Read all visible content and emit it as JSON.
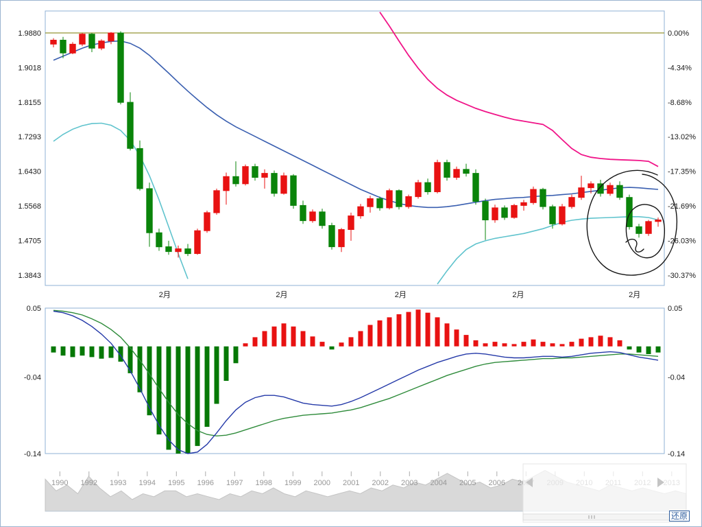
{
  "controls": {
    "restore_label": "还原"
  },
  "colors": {
    "up": "#e81212",
    "down": "#0a840a",
    "ma_line": "#3a5fb0",
    "band_upper": "#f01488",
    "band_lower": "#5fc3cd",
    "reference_line": "#7b7b00",
    "dif": "#2439a8",
    "dea": "#2e8b3a",
    "hist_up": "#e81212",
    "hist_down": "#067806",
    "border": "#8fb2d4",
    "annotation": "#151515",
    "nav_area": "#d9d9d9",
    "nav_area_edge": "#c4c4c4"
  },
  "chart_data": {
    "type": "candlestick",
    "title": "",
    "price_panel": {
      "ylim": [
        1.3586,
        2.0427
      ],
      "reference": 1.988,
      "y_ticks": [
        {
          "v": 1.988,
          "left": "1.9880",
          "right": "0.00%"
        },
        {
          "v": 1.9018,
          "left": "1.9018",
          "right": "-4.34%"
        },
        {
          "v": 1.8155,
          "left": "1.8155",
          "right": "-8.68%"
        },
        {
          "v": 1.7293,
          "left": "1.7293",
          "right": "-13.02%"
        },
        {
          "v": 1.643,
          "left": "1.6430",
          "right": "-17.35%"
        },
        {
          "v": 1.5568,
          "left": "1.5568",
          "right": "-21.69%"
        },
        {
          "v": 1.4705,
          "left": "1.4705",
          "right": "-26.03%"
        },
        {
          "v": 1.3843,
          "left": "1.3843",
          "right": "-30.37%"
        }
      ],
      "x_ticks": [
        {
          "f": 0.193,
          "label": "2月"
        },
        {
          "f": 0.382,
          "label": "2月"
        },
        {
          "f": 0.574,
          "label": "2月"
        },
        {
          "f": 0.764,
          "label": "2月"
        },
        {
          "f": 0.952,
          "label": "2月"
        }
      ],
      "candles": [
        [
          1.96,
          1.975,
          1.952,
          1.97
        ],
        [
          1.97,
          1.978,
          1.925,
          1.938
        ],
        [
          1.938,
          1.965,
          1.935,
          1.96
        ],
        [
          1.96,
          1.988,
          1.955,
          1.985
        ],
        [
          1.985,
          1.988,
          1.94,
          1.95
        ],
        [
          1.95,
          1.972,
          1.945,
          1.968
        ],
        [
          1.968,
          1.99,
          1.96,
          1.988
        ],
        [
          1.988,
          1.992,
          1.81,
          1.815
        ],
        [
          1.815,
          1.84,
          1.695,
          1.7
        ],
        [
          1.7,
          1.72,
          1.595,
          1.6
        ],
        [
          1.6,
          1.615,
          1.455,
          1.49
        ],
        [
          1.49,
          1.5,
          1.445,
          1.455
        ],
        [
          1.455,
          1.47,
          1.435,
          1.443
        ],
        [
          1.443,
          1.458,
          1.428,
          1.45
        ],
        [
          1.45,
          1.462,
          1.432,
          1.438
        ],
        [
          1.438,
          1.5,
          1.435,
          1.495
        ],
        [
          1.495,
          1.545,
          1.49,
          1.54
        ],
        [
          1.54,
          1.6,
          1.535,
          1.595
        ],
        [
          1.595,
          1.64,
          1.56,
          1.63
        ],
        [
          1.63,
          1.668,
          1.605,
          1.612
        ],
        [
          1.612,
          1.66,
          1.608,
          1.655
        ],
        [
          1.655,
          1.662,
          1.62,
          1.628
        ],
        [
          1.628,
          1.648,
          1.6,
          1.638
        ],
        [
          1.638,
          1.645,
          1.58,
          1.588
        ],
        [
          1.588,
          1.64,
          1.585,
          1.632
        ],
        [
          1.632,
          1.636,
          1.55,
          1.558
        ],
        [
          1.558,
          1.57,
          1.512,
          1.52
        ],
        [
          1.52,
          1.548,
          1.515,
          1.542
        ],
        [
          1.542,
          1.55,
          1.5,
          1.508
        ],
        [
          1.508,
          1.515,
          1.448,
          1.455
        ],
        [
          1.455,
          1.502,
          1.442,
          1.498
        ],
        [
          1.498,
          1.54,
          1.47,
          1.532
        ],
        [
          1.532,
          1.562,
          1.525,
          1.555
        ],
        [
          1.555,
          1.582,
          1.54,
          1.575
        ],
        [
          1.575,
          1.58,
          1.545,
          1.552
        ],
        [
          1.552,
          1.6,
          1.548,
          1.595
        ],
        [
          1.595,
          1.598,
          1.548,
          1.555
        ],
        [
          1.555,
          1.585,
          1.55,
          1.58
        ],
        [
          1.58,
          1.622,
          1.575,
          1.615
        ],
        [
          1.615,
          1.625,
          1.585,
          1.592
        ],
        [
          1.592,
          1.672,
          1.588,
          1.665
        ],
        [
          1.665,
          1.672,
          1.62,
          1.628
        ],
        [
          1.628,
          1.655,
          1.622,
          1.648
        ],
        [
          1.648,
          1.662,
          1.63,
          1.638
        ],
        [
          1.638,
          1.648,
          1.56,
          1.568
        ],
        [
          1.568,
          1.575,
          1.472,
          1.522
        ],
        [
          1.522,
          1.56,
          1.515,
          1.552
        ],
        [
          1.552,
          1.558,
          1.522,
          1.528
        ],
        [
          1.528,
          1.562,
          1.525,
          1.558
        ],
        [
          1.558,
          1.572,
          1.545,
          1.565
        ],
        [
          1.565,
          1.605,
          1.56,
          1.598
        ],
        [
          1.598,
          1.602,
          1.548,
          1.555
        ],
        [
          1.555,
          1.56,
          1.5,
          1.512
        ],
        [
          1.512,
          1.562,
          1.508,
          1.555
        ],
        [
          1.555,
          1.585,
          1.55,
          1.578
        ],
        [
          1.578,
          1.632,
          1.572,
          1.602
        ],
        [
          1.602,
          1.618,
          1.588,
          1.612
        ],
        [
          1.612,
          1.622,
          1.58,
          1.588
        ],
        [
          1.588,
          1.615,
          1.582,
          1.608
        ],
        [
          1.608,
          1.618,
          1.572,
          1.578
        ],
        [
          1.578,
          1.585,
          1.498,
          1.505
        ],
        [
          1.505,
          1.512,
          1.478,
          1.488
        ],
        [
          1.488,
          1.522,
          1.482,
          1.518
        ],
        [
          1.518,
          1.528,
          1.505,
          1.522
        ]
      ],
      "ma_blue": [
        1.92,
        1.93,
        1.94,
        1.95,
        1.958,
        1.963,
        1.967,
        1.968,
        1.962,
        1.95,
        1.932,
        1.91,
        1.888,
        1.865,
        1.843,
        1.822,
        1.802,
        1.784,
        1.768,
        1.754,
        1.742,
        1.73,
        1.718,
        1.706,
        1.694,
        1.682,
        1.67,
        1.658,
        1.646,
        1.634,
        1.622,
        1.61,
        1.598,
        1.588,
        1.578,
        1.57,
        1.563,
        1.558,
        1.555,
        1.553,
        1.553,
        1.555,
        1.558,
        1.562,
        1.566,
        1.57,
        1.573,
        1.575,
        1.577,
        1.578,
        1.58,
        1.582,
        1.583,
        1.585,
        1.587,
        1.59,
        1.593,
        1.596,
        1.599,
        1.602,
        1.603,
        1.602,
        1.6,
        1.598
      ],
      "band_pink": [
        null,
        null,
        null,
        null,
        null,
        null,
        null,
        null,
        null,
        null,
        null,
        null,
        null,
        null,
        null,
        null,
        null,
        null,
        null,
        null,
        null,
        null,
        null,
        null,
        null,
        null,
        null,
        null,
        null,
        null,
        null,
        null,
        null,
        null,
        2.04,
        2.005,
        1.968,
        1.932,
        1.9,
        1.872,
        1.85,
        1.833,
        1.82,
        1.81,
        1.8,
        1.792,
        1.785,
        1.778,
        1.772,
        1.768,
        1.764,
        1.76,
        1.745,
        1.722,
        1.7,
        1.685,
        1.678,
        1.675,
        1.673,
        1.672,
        1.671,
        1.67,
        1.668,
        1.655
      ],
      "band_cyan": [
        1.718,
        1.735,
        1.748,
        1.757,
        1.762,
        1.763,
        1.758,
        1.745,
        1.72,
        1.682,
        1.632,
        1.572,
        1.505,
        1.438,
        1.375,
        null,
        null,
        null,
        null,
        null,
        null,
        null,
        null,
        null,
        null,
        null,
        null,
        null,
        null,
        null,
        null,
        null,
        null,
        null,
        null,
        null,
        null,
        null,
        null,
        null,
        1.362,
        1.395,
        1.425,
        1.448,
        1.462,
        1.47,
        1.476,
        1.48,
        1.484,
        1.488,
        1.494,
        1.5,
        1.508,
        1.516,
        1.521,
        1.524,
        1.526,
        1.527,
        1.528,
        1.529,
        1.53,
        1.53,
        1.528,
        1.522
      ]
    },
    "macd_panel": {
      "ylim": [
        -0.14,
        0.05
      ],
      "y_ticks": [
        {
          "v": 0.05,
          "label": "0.05"
        },
        {
          "v": -0.04,
          "label": "-0.04"
        },
        {
          "v": -0.14,
          "label": "-0.14"
        }
      ],
      "hist": [
        -0.008,
        -0.012,
        -0.014,
        -0.012,
        -0.014,
        -0.016,
        -0.015,
        -0.02,
        -0.035,
        -0.06,
        -0.09,
        -0.115,
        -0.135,
        -0.14,
        -0.14,
        -0.13,
        -0.105,
        -0.075,
        -0.045,
        -0.022,
        0.004,
        0.012,
        0.02,
        0.026,
        0.03,
        0.026,
        0.02,
        0.013,
        0.006,
        -0.004,
        0.005,
        0.012,
        0.02,
        0.028,
        0.034,
        0.038,
        0.042,
        0.045,
        0.048,
        0.044,
        0.038,
        0.03,
        0.022,
        0.015,
        0.008,
        0.004,
        0.006,
        0.004,
        0.003,
        0.006,
        0.009,
        0.006,
        0.004,
        0.003,
        0.006,
        0.01,
        0.012,
        0.014,
        0.012,
        0.008,
        -0.004,
        -0.008,
        -0.01,
        -0.008
      ],
      "dif": [
        0.046,
        0.044,
        0.04,
        0.034,
        0.026,
        0.016,
        0.004,
        -0.012,
        -0.032,
        -0.055,
        -0.08,
        -0.103,
        -0.122,
        -0.135,
        -0.141,
        -0.138,
        -0.128,
        -0.113,
        -0.097,
        -0.083,
        -0.073,
        -0.067,
        -0.064,
        -0.064,
        -0.066,
        -0.07,
        -0.074,
        -0.076,
        -0.077,
        -0.078,
        -0.076,
        -0.072,
        -0.067,
        -0.061,
        -0.055,
        -0.049,
        -0.043,
        -0.037,
        -0.031,
        -0.026,
        -0.021,
        -0.017,
        -0.013,
        -0.01,
        -0.009,
        -0.01,
        -0.012,
        -0.014,
        -0.015,
        -0.015,
        -0.014,
        -0.013,
        -0.013,
        -0.014,
        -0.013,
        -0.011,
        -0.009,
        -0.008,
        -0.007,
        -0.008,
        -0.011,
        -0.014,
        -0.016,
        -0.018
      ],
      "dea": [
        0.047,
        0.046,
        0.044,
        0.041,
        0.036,
        0.03,
        0.022,
        0.012,
        -0.002,
        -0.018,
        -0.036,
        -0.055,
        -0.073,
        -0.089,
        -0.101,
        -0.11,
        -0.115,
        -0.117,
        -0.116,
        -0.113,
        -0.109,
        -0.105,
        -0.101,
        -0.097,
        -0.094,
        -0.092,
        -0.09,
        -0.089,
        -0.088,
        -0.087,
        -0.085,
        -0.083,
        -0.08,
        -0.076,
        -0.072,
        -0.068,
        -0.063,
        -0.058,
        -0.053,
        -0.048,
        -0.043,
        -0.038,
        -0.034,
        -0.03,
        -0.026,
        -0.023,
        -0.021,
        -0.02,
        -0.019,
        -0.018,
        -0.017,
        -0.016,
        -0.016,
        -0.015,
        -0.015,
        -0.014,
        -0.013,
        -0.012,
        -0.011,
        -0.01,
        -0.01,
        -0.011,
        -0.012,
        -0.013
      ]
    },
    "navigator": {
      "years": [
        "1990",
        "1992",
        "1993",
        "1994",
        "1995",
        "1996",
        "1997",
        "1998",
        "1999",
        "2000",
        "2001",
        "2002",
        "2003",
        "2004",
        "2005",
        "2006",
        "2007",
        "2009",
        "2010",
        "2011",
        "2012",
        "2013"
      ],
      "area": [
        0.55,
        0.35,
        0.45,
        0.3,
        0.6,
        0.4,
        0.25,
        0.35,
        0.2,
        0.3,
        0.25,
        0.35,
        0.35,
        0.25,
        0.3,
        0.25,
        0.2,
        0.3,
        0.25,
        0.35,
        0.3,
        0.4,
        0.3,
        0.25,
        0.35,
        0.3,
        0.25,
        0.3,
        0.35,
        0.3,
        0.4,
        0.35,
        0.45,
        0.4,
        0.5,
        0.45,
        0.55,
        0.65,
        0.55,
        0.45,
        0.5,
        0.4,
        0.45,
        0.55,
        0.5,
        0.6,
        0.7,
        0.6,
        0.5,
        0.45,
        0.4,
        0.35,
        0.45,
        0.4,
        0.35,
        0.4,
        0.35,
        0.3,
        0.35,
        0.3
      ]
    },
    "annotation_paths": [
      "M958,254 C920,236 876,256 862,292 C848,328 856,370 884,390 C908,406 946,402 964,384 C986,362 992,320 981,291 C972,266 950,254 936,253",
      "M952,300 C933,291 916,303 913,324 C910,347 919,369 937,374 C953,378 966,365 968,343 C970,321 963,305 952,300",
      "M912,352 C921,343 931,349 927,358 C923,367 932,369 938,362"
    ]
  }
}
